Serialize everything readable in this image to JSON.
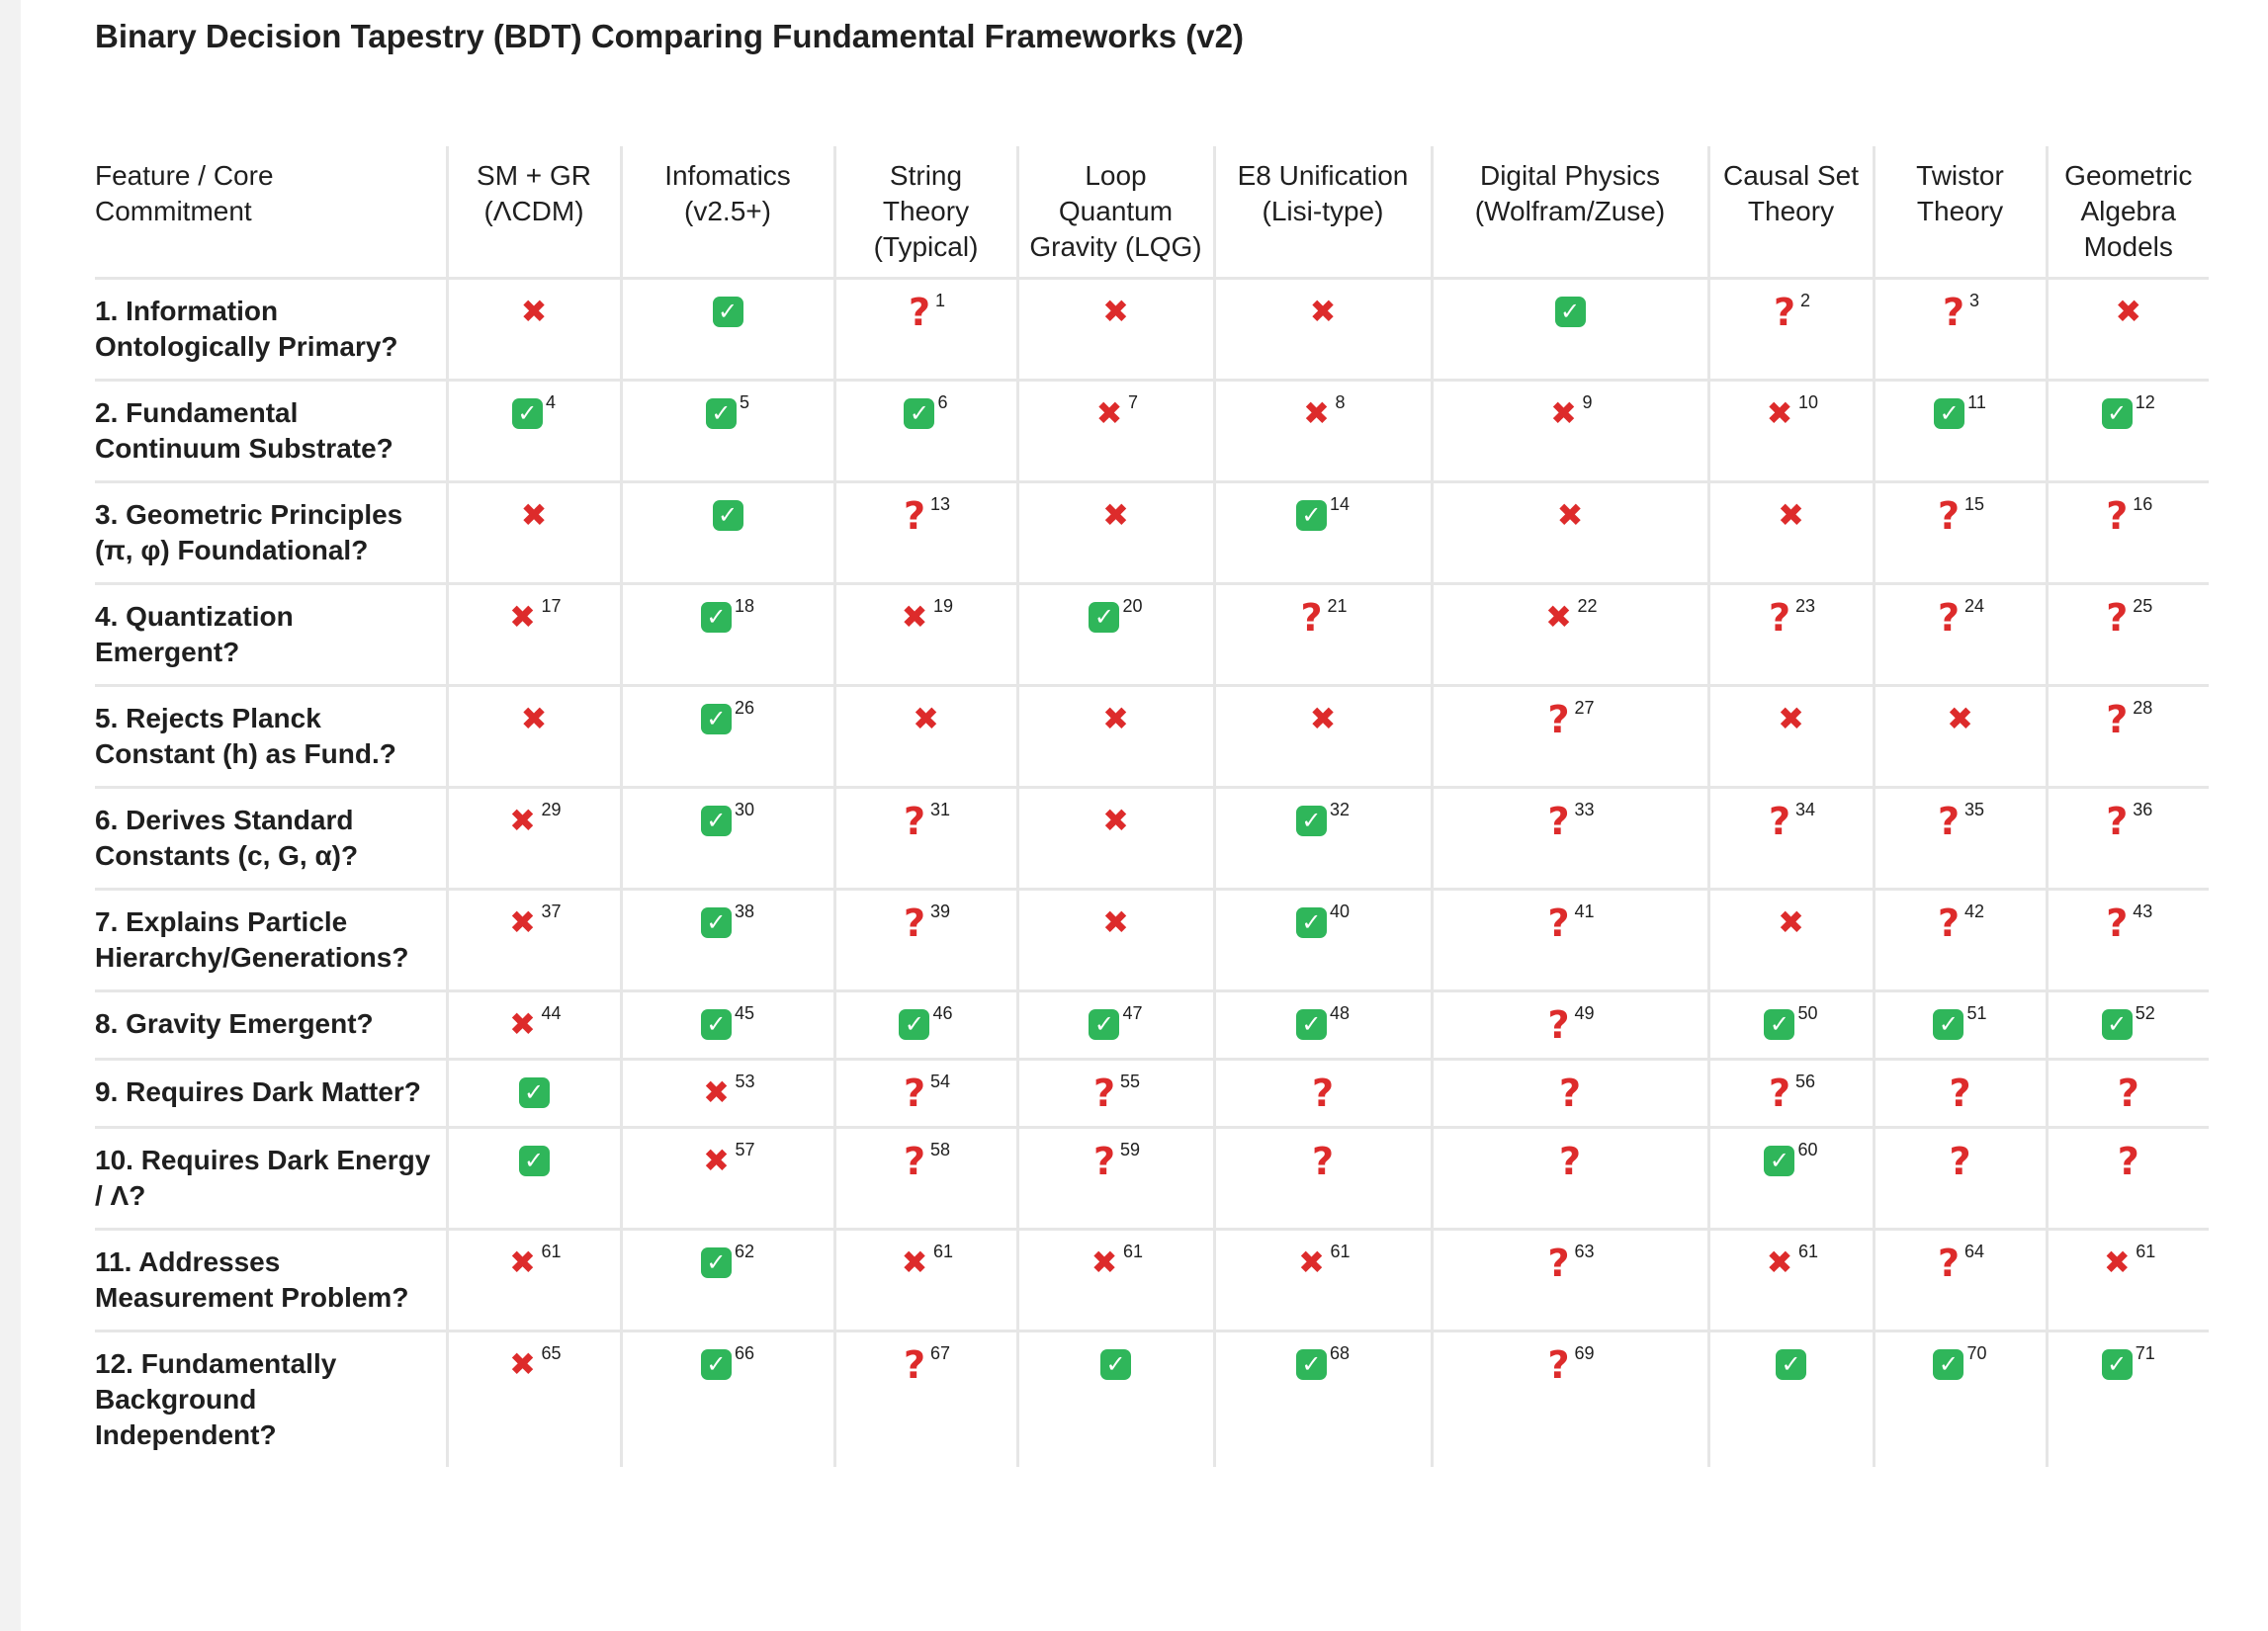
{
  "title": "Binary Decision Tapestry (BDT) Comparing Fundamental Frameworks (v2)",
  "icons": {
    "check": "✓",
    "cross": "✖",
    "question": "?"
  },
  "colors": {
    "check_bg": "#2fb65a",
    "cross": "#dd2b2b",
    "question": "#dd2b2b"
  },
  "table": {
    "columns": [
      "Feature / Core Commitment",
      "SM + GR (ΛCDM)",
      "Infomatics (v2.5+)",
      "String Theory (Typical)",
      "Loop Quantum Gravity (LQG)",
      "E8 Unification (Lisi-type)",
      "Digital Physics (Wolfram/Zuse)",
      "Causal Set Theory",
      "Twistor Theory",
      "Geometric Algebra Models"
    ],
    "rows": [
      {
        "feature": "1. Information Ontologically Primary?",
        "cells": [
          {
            "s": "cross",
            "n": ""
          },
          {
            "s": "check",
            "n": ""
          },
          {
            "s": "question",
            "n": "1"
          },
          {
            "s": "cross",
            "n": ""
          },
          {
            "s": "cross",
            "n": ""
          },
          {
            "s": "check",
            "n": ""
          },
          {
            "s": "question",
            "n": "2"
          },
          {
            "s": "question",
            "n": "3"
          },
          {
            "s": "cross",
            "n": ""
          }
        ]
      },
      {
        "feature": "2. Fundamental Continuum Substrate?",
        "cells": [
          {
            "s": "check",
            "n": "4"
          },
          {
            "s": "check",
            "n": "5"
          },
          {
            "s": "check",
            "n": "6"
          },
          {
            "s": "cross",
            "n": "7"
          },
          {
            "s": "cross",
            "n": "8"
          },
          {
            "s": "cross",
            "n": "9"
          },
          {
            "s": "cross",
            "n": "10"
          },
          {
            "s": "check",
            "n": "11"
          },
          {
            "s": "check",
            "n": "12"
          }
        ]
      },
      {
        "feature": "3. Geometric Principles (π, φ) Foundational?",
        "cells": [
          {
            "s": "cross",
            "n": ""
          },
          {
            "s": "check",
            "n": ""
          },
          {
            "s": "question",
            "n": "13"
          },
          {
            "s": "cross",
            "n": ""
          },
          {
            "s": "check",
            "n": "14"
          },
          {
            "s": "cross",
            "n": ""
          },
          {
            "s": "cross",
            "n": ""
          },
          {
            "s": "question",
            "n": "15"
          },
          {
            "s": "question",
            "n": "16"
          }
        ]
      },
      {
        "feature": "4. Quantization Emergent?",
        "cells": [
          {
            "s": "cross",
            "n": "17"
          },
          {
            "s": "check",
            "n": "18"
          },
          {
            "s": "cross",
            "n": "19"
          },
          {
            "s": "check",
            "n": "20"
          },
          {
            "s": "question",
            "n": "21"
          },
          {
            "s": "cross",
            "n": "22"
          },
          {
            "s": "question",
            "n": "23"
          },
          {
            "s": "question",
            "n": "24"
          },
          {
            "s": "question",
            "n": "25"
          }
        ]
      },
      {
        "feature": "5. Rejects Planck Constant (h) as Fund.?",
        "cells": [
          {
            "s": "cross",
            "n": ""
          },
          {
            "s": "check",
            "n": "26"
          },
          {
            "s": "cross",
            "n": ""
          },
          {
            "s": "cross",
            "n": ""
          },
          {
            "s": "cross",
            "n": ""
          },
          {
            "s": "question",
            "n": "27"
          },
          {
            "s": "cross",
            "n": ""
          },
          {
            "s": "cross",
            "n": ""
          },
          {
            "s": "question",
            "n": "28"
          }
        ]
      },
      {
        "feature": "6. Derives Standard Constants (c, G, α)?",
        "cells": [
          {
            "s": "cross",
            "n": "29"
          },
          {
            "s": "check",
            "n": "30"
          },
          {
            "s": "question",
            "n": "31"
          },
          {
            "s": "cross",
            "n": ""
          },
          {
            "s": "check",
            "n": "32"
          },
          {
            "s": "question",
            "n": "33"
          },
          {
            "s": "question",
            "n": "34"
          },
          {
            "s": "question",
            "n": "35"
          },
          {
            "s": "question",
            "n": "36"
          }
        ]
      },
      {
        "feature": "7. Explains Particle Hierarchy/Generations?",
        "cells": [
          {
            "s": "cross",
            "n": "37"
          },
          {
            "s": "check",
            "n": "38"
          },
          {
            "s": "question",
            "n": "39"
          },
          {
            "s": "cross",
            "n": ""
          },
          {
            "s": "check",
            "n": "40"
          },
          {
            "s": "question",
            "n": "41"
          },
          {
            "s": "cross",
            "n": ""
          },
          {
            "s": "question",
            "n": "42"
          },
          {
            "s": "question",
            "n": "43"
          }
        ]
      },
      {
        "feature": "8. Gravity Emergent?",
        "cells": [
          {
            "s": "cross",
            "n": "44"
          },
          {
            "s": "check",
            "n": "45"
          },
          {
            "s": "check",
            "n": "46"
          },
          {
            "s": "check",
            "n": "47"
          },
          {
            "s": "check",
            "n": "48"
          },
          {
            "s": "question",
            "n": "49"
          },
          {
            "s": "check",
            "n": "50"
          },
          {
            "s": "check",
            "n": "51"
          },
          {
            "s": "check",
            "n": "52"
          }
        ]
      },
      {
        "feature": "9. Requires Dark Matter?",
        "cells": [
          {
            "s": "check",
            "n": ""
          },
          {
            "s": "cross",
            "n": "53"
          },
          {
            "s": "question",
            "n": "54"
          },
          {
            "s": "question",
            "n": "55"
          },
          {
            "s": "question",
            "n": ""
          },
          {
            "s": "question",
            "n": ""
          },
          {
            "s": "question",
            "n": "56"
          },
          {
            "s": "question",
            "n": ""
          },
          {
            "s": "question",
            "n": ""
          }
        ]
      },
      {
        "feature": "10. Requires Dark Energy / Λ?",
        "cells": [
          {
            "s": "check",
            "n": ""
          },
          {
            "s": "cross",
            "n": "57"
          },
          {
            "s": "question",
            "n": "58"
          },
          {
            "s": "question",
            "n": "59"
          },
          {
            "s": "question",
            "n": ""
          },
          {
            "s": "question",
            "n": ""
          },
          {
            "s": "check",
            "n": "60"
          },
          {
            "s": "question",
            "n": ""
          },
          {
            "s": "question",
            "n": ""
          }
        ]
      },
      {
        "feature": "11. Addresses Measurement Problem?",
        "cells": [
          {
            "s": "cross",
            "n": "61"
          },
          {
            "s": "check",
            "n": "62"
          },
          {
            "s": "cross",
            "n": "61"
          },
          {
            "s": "cross",
            "n": "61"
          },
          {
            "s": "cross",
            "n": "61"
          },
          {
            "s": "question",
            "n": "63"
          },
          {
            "s": "cross",
            "n": "61"
          },
          {
            "s": "question",
            "n": "64"
          },
          {
            "s": "cross",
            "n": "61"
          }
        ]
      },
      {
        "feature": "12. Fundamentally Background Independent?",
        "cells": [
          {
            "s": "cross",
            "n": "65"
          },
          {
            "s": "check",
            "n": "66"
          },
          {
            "s": "question",
            "n": "67"
          },
          {
            "s": "check",
            "n": ""
          },
          {
            "s": "check",
            "n": "68"
          },
          {
            "s": "question",
            "n": "69"
          },
          {
            "s": "check",
            "n": ""
          },
          {
            "s": "check",
            "n": "70"
          },
          {
            "s": "check",
            "n": "71"
          }
        ]
      }
    ]
  }
}
